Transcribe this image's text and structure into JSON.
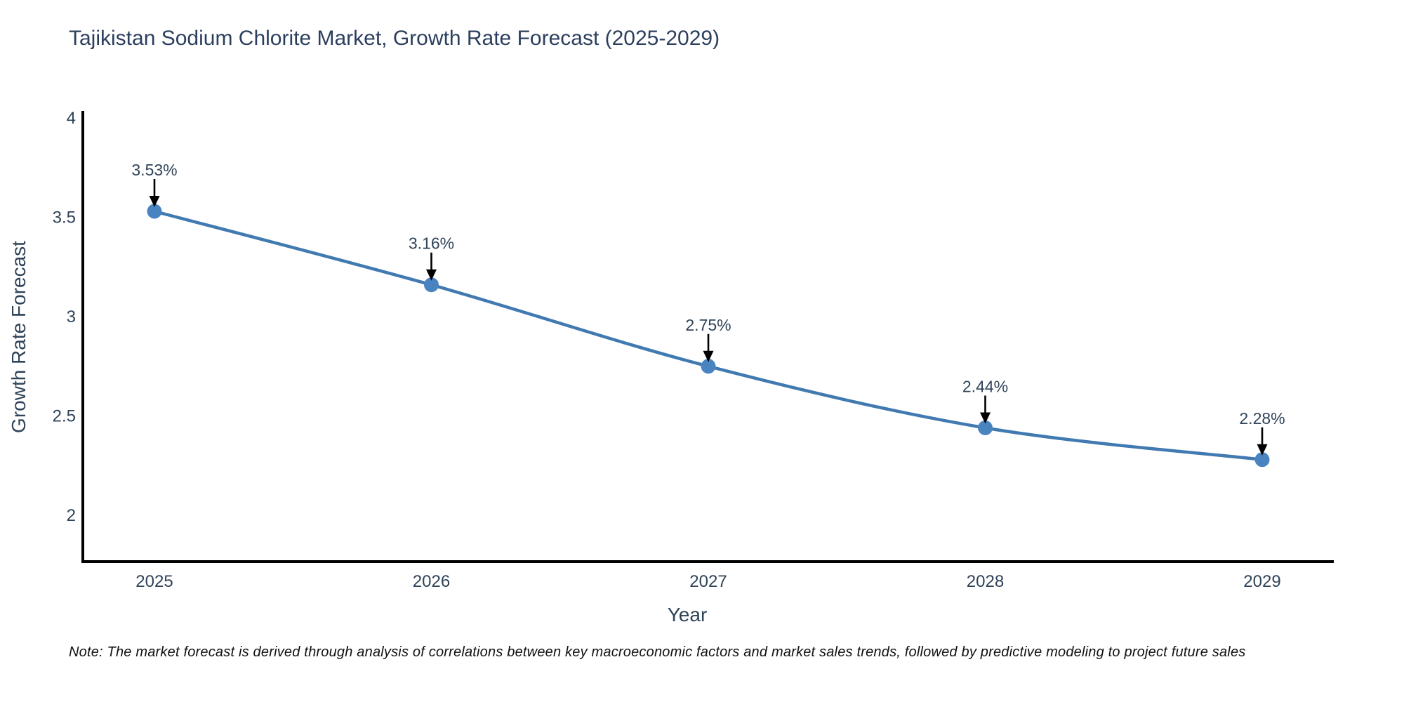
{
  "title": "Tajikistan Sodium Chlorite Market, Growth Rate Forecast (2025-2029)",
  "note": "Note: The market forecast is derived through analysis of correlations between key macroeconomic factors and market sales trends, followed by predictive modeling to project future sales",
  "chart_data": {
    "type": "line",
    "title": "Tajikistan Sodium Chlorite Market, Growth Rate Forecast (2025-2029)",
    "x": [
      2025,
      2026,
      2027,
      2028,
      2029
    ],
    "values": [
      3.53,
      3.16,
      2.75,
      2.44,
      2.28
    ],
    "point_labels": [
      "3.53%",
      "3.16%",
      "2.75%",
      "2.44%",
      "2.28%"
    ],
    "xtick_labels": [
      "2025",
      "2026",
      "2027",
      "2028",
      "2029"
    ],
    "yticks": [
      4,
      3.5,
      3,
      2.5,
      2
    ],
    "ytick_labels": [
      "4",
      "3.5",
      "3",
      "2.5",
      "2"
    ],
    "xlabel": "Year",
    "ylabel": "Growth Rate Forecast",
    "ylim": [
      1.77,
      4.03
    ],
    "grid": false,
    "legend": "none",
    "line_shape": "spline",
    "colors": {
      "line": "#4179b1",
      "marker": "#4a84c0",
      "axis_line": "#000000",
      "tick_text": "#2f4358",
      "annotation_text": "#2f4358",
      "arrow": "#000000",
      "title_text": "#2c3f5e"
    }
  }
}
